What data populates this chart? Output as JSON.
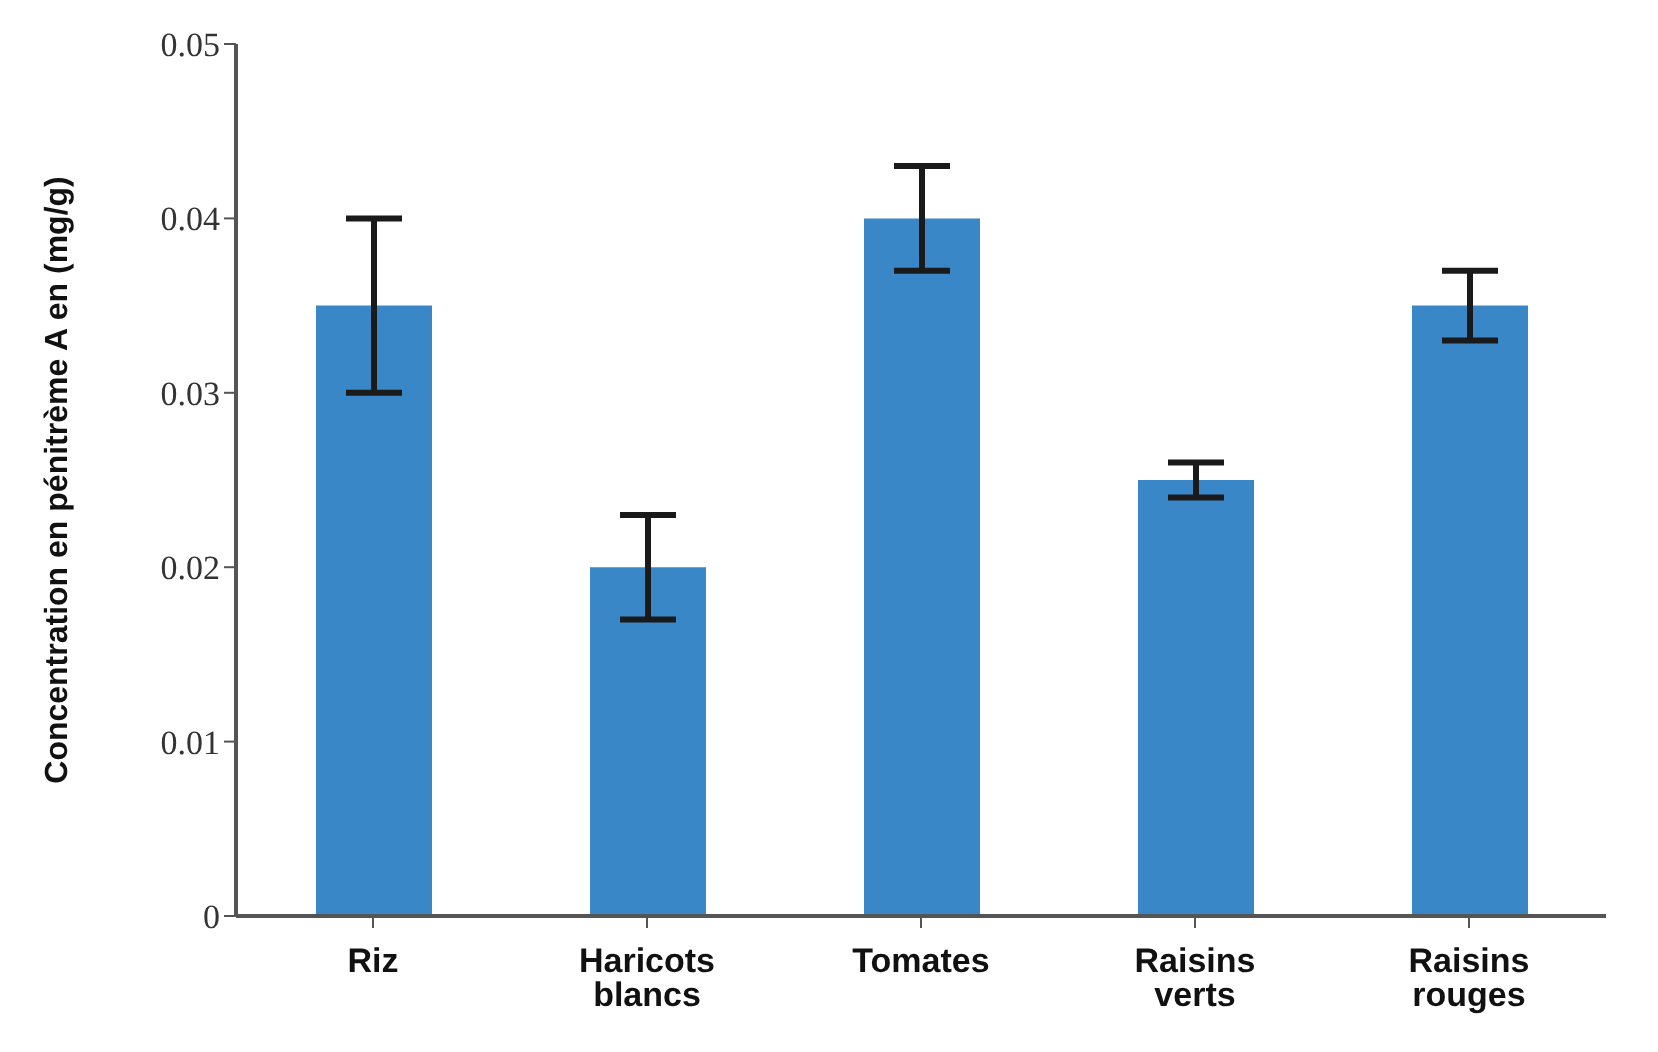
{
  "chart_data": {
    "type": "bar",
    "ylabel": "Concentration en pénitrème A en (mg/g)",
    "categories": [
      "Riz",
      "Haricots blancs",
      "Tomates",
      "Raisins verts",
      "Raisins rouges"
    ],
    "values": [
      0.035,
      0.02,
      0.04,
      0.025,
      0.035
    ],
    "errors": [
      0.005,
      0.003,
      0.003,
      0.001,
      0.002
    ],
    "color": "#3a87c8",
    "ylim": [
      0,
      0.05
    ],
    "yticks": [
      0,
      0.01,
      0.02,
      0.03,
      0.04,
      0.05
    ],
    "grid": false,
    "legend": false
  }
}
